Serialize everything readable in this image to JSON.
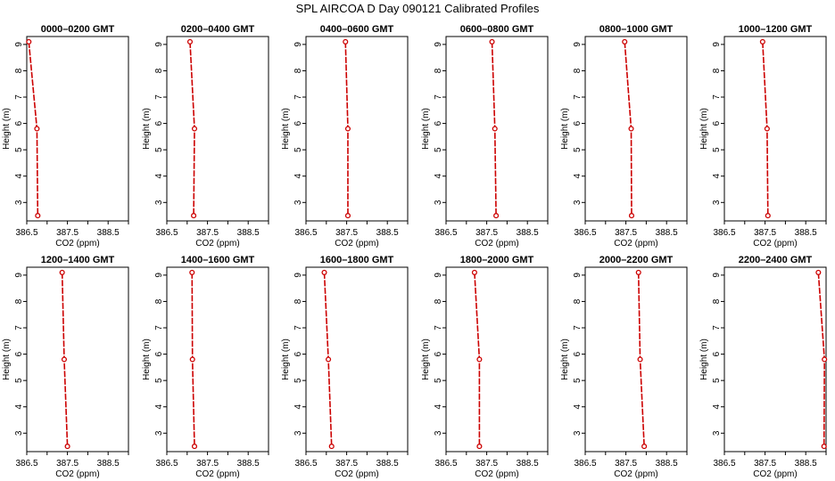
{
  "title": "SPL AIRCOA D  Day 090121  Calibrated Profiles",
  "colors": {
    "series": "#cc0000",
    "axis": "#000000"
  },
  "chart_data": {
    "type": "line",
    "title": "SPL AIRCOA D  Day 090121  Calibrated Profiles",
    "xlabel": "CO2 (ppm)",
    "ylabel": "Height (m)",
    "xlim": [
      386.5,
      389.0
    ],
    "ylim": [
      2.3,
      9.3
    ],
    "xticks": [
      386.5,
      387.5,
      388.5
    ],
    "xticks_minor": [
      387.0,
      388.0,
      389.0
    ],
    "xtick_labels": [
      "386.5",
      "387.5",
      "388.5"
    ],
    "yticks": [
      3,
      4,
      5,
      6,
      7,
      8,
      9
    ],
    "ytick_labels": [
      "3",
      "4",
      "5",
      "6",
      "7",
      "8",
      "9"
    ],
    "heights": [
      9.1,
      5.8,
      2.5
    ],
    "panels": [
      {
        "title": "0000–0200 GMT",
        "co2": [
          386.55,
          386.75,
          386.77
        ]
      },
      {
        "title": "0200–0400 GMT",
        "co2": [
          387.07,
          387.18,
          387.16
        ]
      },
      {
        "title": "0400–0600 GMT",
        "co2": [
          387.47,
          387.53,
          387.53
        ]
      },
      {
        "title": "0600–0800 GMT",
        "co2": [
          387.63,
          387.7,
          387.73
        ]
      },
      {
        "title": "0800–1000 GMT",
        "co2": [
          387.47,
          387.63,
          387.64
        ]
      },
      {
        "title": "1000–1200 GMT",
        "co2": [
          387.44,
          387.55,
          387.57
        ]
      },
      {
        "title": "1200–1400 GMT",
        "co2": [
          387.37,
          387.42,
          387.5
        ]
      },
      {
        "title": "1400–1600 GMT",
        "co2": [
          387.12,
          387.13,
          387.18
        ]
      },
      {
        "title": "1600–1800 GMT",
        "co2": [
          386.95,
          387.05,
          387.13
        ]
      },
      {
        "title": "1800–2000 GMT",
        "co2": [
          387.2,
          387.32,
          387.32
        ]
      },
      {
        "title": "2000–2200 GMT",
        "co2": [
          387.81,
          387.85,
          387.95
        ]
      },
      {
        "title": "2200–2400 GMT",
        "co2": [
          388.81,
          388.96,
          388.95
        ]
      }
    ]
  }
}
